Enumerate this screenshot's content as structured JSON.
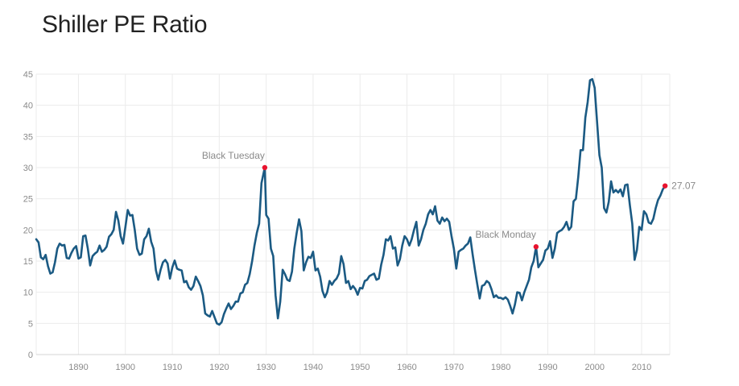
{
  "chart_data": {
    "type": "line",
    "title": "Shiller PE Ratio",
    "xlabel": "",
    "ylabel": "",
    "xlim": [
      1881,
      2016
    ],
    "ylim": [
      0,
      45
    ],
    "x_ticks": [
      1890,
      1900,
      1910,
      1920,
      1930,
      1940,
      1950,
      1960,
      1970,
      1980,
      1990,
      2000,
      2010
    ],
    "y_ticks": [
      0,
      5,
      10,
      15,
      20,
      25,
      30,
      35,
      40,
      45
    ],
    "grid": true,
    "line_color": "#1b5a83",
    "marker_color": "#e8132e",
    "series": [
      {
        "x": [
          1881,
          1881.5,
          1882,
          1882.5,
          1883,
          1883.5,
          1884,
          1884.5,
          1885,
          1885.5,
          1886,
          1886.5,
          1887,
          1887.5,
          1888,
          1888.5,
          1889,
          1889.5,
          1890,
          1890.5,
          1891,
          1891.5,
          1892,
          1892.5,
          1893,
          1893.5,
          1894,
          1894.5,
          1895,
          1895.5,
          1896,
          1896.5,
          1897,
          1897.5,
          1898,
          1898.5,
          1899,
          1899.5,
          1900,
          1900.5,
          1901,
          1901.5,
          1902,
          1902.5,
          1903,
          1903.5,
          1904,
          1904.5,
          1905,
          1905.5,
          1906,
          1906.5,
          1907,
          1907.5,
          1908,
          1908.5,
          1909,
          1909.5,
          1910,
          1910.5,
          1911,
          1911.5,
          1912,
          1912.5,
          1913,
          1913.5,
          1914,
          1914.5,
          1915,
          1915.5,
          1916,
          1916.5,
          1917,
          1917.5,
          1918,
          1918.5,
          1919,
          1919.5,
          1920,
          1920.5,
          1921,
          1921.5,
          1922,
          1922.5,
          1923,
          1923.5,
          1924,
          1924.5,
          1925,
          1925.5,
          1926,
          1926.5,
          1927,
          1927.5,
          1928,
          1928.5,
          1929,
          1929.7,
          1930,
          1930.5,
          1931,
          1931.5,
          1932,
          1932.5,
          1933,
          1933.5,
          1934,
          1934.5,
          1935,
          1935.5,
          1936,
          1936.5,
          1937,
          1937.5,
          1938,
          1938.5,
          1939,
          1939.5,
          1940,
          1940.5,
          1941,
          1941.5,
          1942,
          1942.5,
          1943,
          1943.5,
          1944,
          1944.5,
          1945,
          1945.5,
          1946,
          1946.5,
          1947,
          1947.5,
          1948,
          1948.5,
          1949,
          1949.5,
          1950,
          1950.5,
          1951,
          1951.5,
          1952,
          1952.5,
          1953,
          1953.5,
          1954,
          1954.5,
          1955,
          1955.5,
          1956,
          1956.5,
          1957,
          1957.5,
          1958,
          1958.5,
          1959,
          1959.5,
          1960,
          1960.5,
          1961,
          1961.5,
          1962,
          1962.5,
          1963,
          1963.5,
          1964,
          1964.5,
          1965,
          1965.5,
          1966,
          1966.5,
          1967,
          1967.5,
          1968,
          1968.5,
          1969,
          1969.5,
          1970,
          1970.5,
          1971,
          1971.5,
          1972,
          1972.5,
          1973,
          1973.5,
          1974,
          1974.5,
          1975,
          1975.5,
          1976,
          1976.5,
          1977,
          1977.5,
          1978,
          1978.5,
          1979,
          1979.5,
          1980,
          1980.5,
          1981,
          1981.5,
          1982,
          1982.5,
          1983,
          1983.5,
          1984,
          1984.5,
          1985,
          1985.5,
          1986,
          1986.5,
          1987,
          1987.5,
          1988,
          1988.5,
          1989,
          1989.5,
          1990,
          1990.5,
          1991,
          1991.5,
          1992,
          1992.5,
          1993,
          1993.5,
          1994,
          1994.5,
          1995,
          1995.5,
          1996,
          1996.5,
          1997,
          1997.5,
          1998,
          1998.5,
          1999,
          1999.5,
          2000,
          2000.5,
          2001,
          2001.5,
          2002,
          2002.5,
          2003,
          2003.5,
          2004,
          2004.5,
          2005,
          2005.5,
          2006,
          2006.5,
          2007,
          2007.5,
          2008,
          2008.5,
          2009,
          2009.5,
          2010,
          2010.5,
          2011,
          2011.5,
          2012,
          2012.5,
          2013,
          2013.5,
          2014,
          2014.5,
          2015
        ],
        "y": [
          18.5,
          18.0,
          15.6,
          15.3,
          16.0,
          14.2,
          13.0,
          13.2,
          14.8,
          17.0,
          17.8,
          17.5,
          17.6,
          15.5,
          15.4,
          16.3,
          17.0,
          17.4,
          15.4,
          15.6,
          19.0,
          19.1,
          17.0,
          14.3,
          15.8,
          16.2,
          16.5,
          17.5,
          16.5,
          16.8,
          17.3,
          18.9,
          19.3,
          20.0,
          22.9,
          21.5,
          19.0,
          17.8,
          20.5,
          23.2,
          22.3,
          22.4,
          20.0,
          17.0,
          16.0,
          16.2,
          18.5,
          19.0,
          20.2,
          18.1,
          17.0,
          13.5,
          12.0,
          13.6,
          14.8,
          15.2,
          14.6,
          12.2,
          14.0,
          15.1,
          13.8,
          13.6,
          13.5,
          11.6,
          11.8,
          10.8,
          10.4,
          11.0,
          12.5,
          11.8,
          11.0,
          9.5,
          6.6,
          6.3,
          6.1,
          7.0,
          6.0,
          5.0,
          4.8,
          5.2,
          6.5,
          7.4,
          8.2,
          7.3,
          7.8,
          8.5,
          8.5,
          9.8,
          10.0,
          11.2,
          11.5,
          12.9,
          15.0,
          17.5,
          19.5,
          21.0,
          27.5,
          30.0,
          22.4,
          21.8,
          17.0,
          15.8,
          9.5,
          5.8,
          8.5,
          13.6,
          12.9,
          12.0,
          11.8,
          13.3,
          17.0,
          19.5,
          21.7,
          19.8,
          13.5,
          14.8,
          15.7,
          15.5,
          16.5,
          13.5,
          13.8,
          12.5,
          10.2,
          9.2,
          10.0,
          11.8,
          11.2,
          11.8,
          12.2,
          13.0,
          15.8,
          14.5,
          11.5,
          11.8,
          10.5,
          11.0,
          10.5,
          9.6,
          10.7,
          10.6,
          11.8,
          12.0,
          12.6,
          12.8,
          13.0,
          12.0,
          12.2,
          14.4,
          16.0,
          18.5,
          18.3,
          19.0,
          17.0,
          17.2,
          14.3,
          15.3,
          17.5,
          19.0,
          18.5,
          17.5,
          18.5,
          20.0,
          21.3,
          17.5,
          18.5,
          20.0,
          21.0,
          22.5,
          23.2,
          22.5,
          23.8,
          21.5,
          21.0,
          22.0,
          21.4,
          21.8,
          21.3,
          19.0,
          17.0,
          13.8,
          16.5,
          16.8,
          17.0,
          17.5,
          17.8,
          18.8,
          16.0,
          13.5,
          11.2,
          9.0,
          11.0,
          11.2,
          11.8,
          11.5,
          10.5,
          9.2,
          9.5,
          9.1,
          9.1,
          8.9,
          9.2,
          8.8,
          7.8,
          6.6,
          8.0,
          10.0,
          9.9,
          8.7,
          10.0,
          11.0,
          12.0,
          14.0,
          15.0,
          17.3,
          14.0,
          14.6,
          15.2,
          16.7,
          17.0,
          18.2,
          15.5,
          17.0,
          19.5,
          19.8,
          20.0,
          20.5,
          21.3,
          20.0,
          20.5,
          24.6,
          25.0,
          28.5,
          32.8,
          32.8,
          38.0,
          40.5,
          44.0,
          44.2,
          42.8,
          37.5,
          32.0,
          30.0,
          23.5,
          22.8,
          24.5,
          27.8,
          26.0,
          26.4,
          26.0,
          26.5,
          25.4,
          27.2,
          27.3,
          24.0,
          21.0,
          15.2,
          16.8,
          20.5,
          20.0,
          23.0,
          22.5,
          21.2,
          21.0,
          21.8,
          23.5,
          24.8,
          25.5,
          26.5,
          27.07
        ]
      }
    ],
    "annotations": [
      {
        "label": "Black Tuesday",
        "x": 1929.7,
        "y": 30.0
      },
      {
        "label": "Black Monday",
        "x": 1987.5,
        "y": 17.3
      },
      {
        "label": "27.07",
        "x": 2015,
        "y": 27.07
      }
    ]
  }
}
